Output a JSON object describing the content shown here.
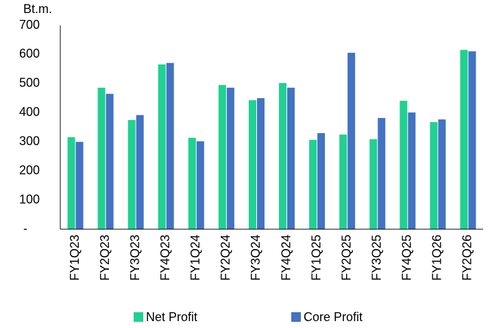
{
  "chart_data": {
    "type": "bar",
    "unit_label": "Bt.m.",
    "categories": [
      "FY1Q23",
      "FY2Q23",
      "FY3Q23",
      "FY4Q23",
      "FY1Q24",
      "FY2Q24",
      "FY3Q24",
      "FY4Q24",
      "FY1Q25",
      "FY2Q25",
      "FY3Q25",
      "FY4Q25",
      "FY1Q26",
      "FY2Q26"
    ],
    "series": [
      {
        "name": "Net Profit",
        "color": "#21d192",
        "values": [
          316,
          486,
          375,
          566,
          314,
          495,
          443,
          502,
          307,
          325,
          309,
          441,
          368,
          616
        ]
      },
      {
        "name": "Core Profit",
        "color": "#4472c4",
        "values": [
          300,
          465,
          392,
          571,
          302,
          486,
          450,
          486,
          330,
          606,
          382,
          401,
          377,
          611
        ]
      }
    ],
    "ylim": [
      0,
      700
    ],
    "yticks": [
      {
        "value": 0,
        "label": "-"
      },
      100,
      200,
      300,
      400,
      500,
      600,
      700
    ],
    "grid": false,
    "legend": "bottom"
  }
}
